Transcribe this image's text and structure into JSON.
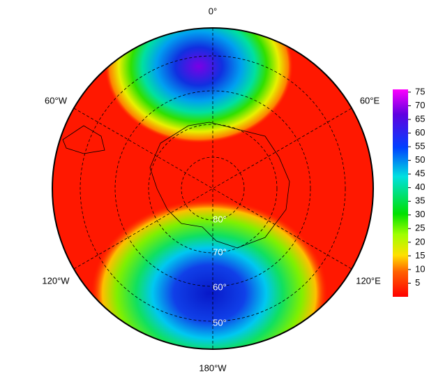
{
  "map": {
    "longitude_labels": [
      "0°",
      "60°E",
      "120°E",
      "180°W",
      "120°W",
      "60°W"
    ],
    "latitude_labels": [
      "80°",
      "70°",
      "60°",
      "50°"
    ]
  },
  "colorbar": {
    "lim": [
      0,
      76
    ],
    "ticks": [
      5,
      10,
      15,
      20,
      25,
      30,
      35,
      40,
      45,
      50,
      55,
      60,
      65,
      70,
      75
    ]
  }
}
